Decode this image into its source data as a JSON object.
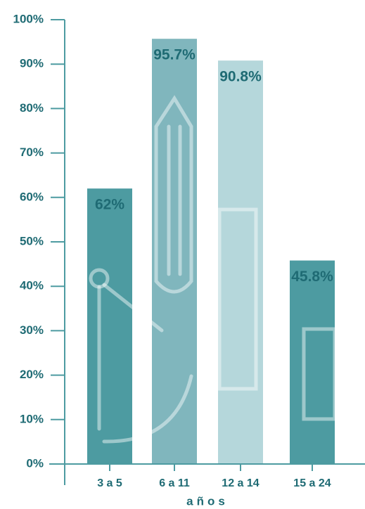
{
  "chart_data": {
    "type": "bar",
    "x_label": "años",
    "categories": [
      "3 a 5",
      "6 a 11",
      "12 a 14",
      "15 a 24"
    ],
    "values": [
      62,
      95.7,
      90.8,
      45.8
    ],
    "value_labels": [
      "62%",
      "95.7%",
      "90.8%",
      "45.8%"
    ],
    "colors": [
      "#4d9ba1",
      "#80b6bd",
      "#b5d7db",
      "#4d9ba1"
    ],
    "ylim": [
      0,
      100
    ],
    "yticks": [
      {
        "value": 0,
        "label": "0%"
      },
      {
        "value": 10,
        "label": "10%"
      },
      {
        "value": 20,
        "label": "20%"
      },
      {
        "value": 30,
        "label": "30%"
      },
      {
        "value": 40,
        "label": "40%"
      },
      {
        "value": 50,
        "label": "50%"
      },
      {
        "value": 60,
        "label": "60%"
      },
      {
        "value": 70,
        "label": "70%"
      },
      {
        "value": 80,
        "label": "80%"
      },
      {
        "value": 90,
        "label": "90%"
      },
      {
        "value": 100,
        "label": "100%"
      }
    ],
    "grid": false
  }
}
